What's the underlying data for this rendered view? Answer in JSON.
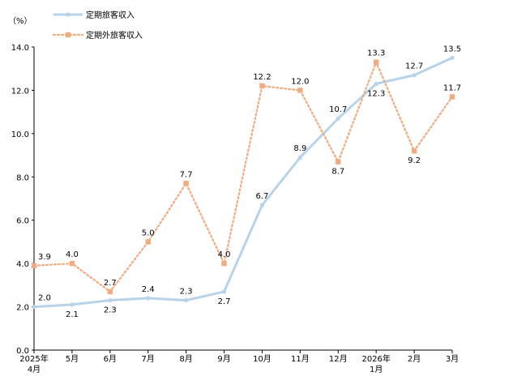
{
  "chart_data": {
    "type": "line",
    "unit_label": "（%）",
    "y_ticks": [
      "0.0",
      "2.0",
      "4.0",
      "6.0",
      "8.0",
      "10.0",
      "12.0",
      "14.0"
    ],
    "ylim": [
      0,
      14
    ],
    "categories": [
      [
        "2025年",
        "4月"
      ],
      [
        "5月"
      ],
      [
        "6月"
      ],
      [
        "7月"
      ],
      [
        "8月"
      ],
      [
        "9月"
      ],
      [
        "10月"
      ],
      [
        "11月"
      ],
      [
        "12月"
      ],
      [
        "2026年",
        "1月"
      ],
      [
        "2月"
      ],
      [
        "3月"
      ]
    ],
    "series": [
      {
        "name": "定期旅客収入",
        "color": "#b7d3ea",
        "style": "solid",
        "marker": "circle",
        "values": [
          2.0,
          2.1,
          2.3,
          2.4,
          2.3,
          2.7,
          6.7,
          8.9,
          10.7,
          12.3,
          12.7,
          13.5
        ],
        "label_text": [
          "2.0",
          "2.1",
          "2.3",
          "2.4",
          "2.3",
          "2.7",
          "6.7",
          "8.9",
          "10.7",
          "12.3",
          "12.7",
          "13.5"
        ],
        "label_pos": [
          "above",
          "below",
          "below",
          "above",
          "above",
          "below",
          "above",
          "above",
          "above",
          "below",
          "above",
          "above"
        ]
      },
      {
        "name": "定期外旅客収入",
        "color": "#f2aa7e",
        "style": "dotted",
        "marker": "square",
        "values": [
          3.9,
          4.0,
          2.7,
          5.0,
          7.7,
          4.0,
          12.2,
          12.0,
          8.7,
          13.3,
          9.2,
          11.7
        ],
        "label_text": [
          "3.9",
          "4.0",
          "2.7",
          "5.0",
          "7.7",
          "4.0",
          "12.2",
          "12.0",
          "8.7",
          "13.3",
          "9.2",
          "11.7"
        ],
        "label_pos": [
          "above",
          "above",
          "above",
          "above",
          "above",
          "above",
          "above",
          "above",
          "below",
          "above",
          "below",
          "above"
        ]
      }
    ],
    "legend_position": "top-left",
    "grid": false
  }
}
